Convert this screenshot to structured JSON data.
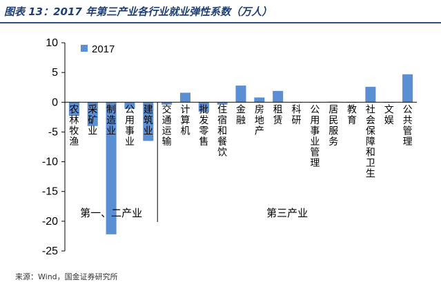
{
  "header": {
    "title": "图表 13：2017 年第三产业各行业就业弹性系数（万人）"
  },
  "footer": {
    "source": "来源：Wind，国金证券研究所"
  },
  "chart_data": {
    "type": "bar",
    "title": "图表 13：2017 年第三产业各行业就业弹性系数（万人）",
    "xlabel": "",
    "ylabel": "",
    "ylim": [
      -25,
      10
    ],
    "yticks": [
      10,
      5,
      0,
      -5,
      -10,
      -15,
      -20,
      -25
    ],
    "grid": false,
    "legend": "top-left",
    "bar_color": "#5b8fd4",
    "categories": [
      "农林牧渔",
      "采矿业",
      "制造业",
      "公用事业",
      "建筑业",
      "交通运输",
      "计算机",
      "批发零售",
      "住宿和餐饮",
      "金融",
      "房地产",
      "租赁",
      "科研",
      "公用事业管理",
      "居民服务",
      "教育",
      "社会保障和卫生",
      "文娱",
      "公共管理"
    ],
    "series": [
      {
        "name": "2017",
        "values": [
          -2.3,
          -4.0,
          -22.2,
          -1.1,
          -6.5,
          -0.4,
          1.6,
          -1.6,
          -0.4,
          2.8,
          0.8,
          1.9,
          -0.05,
          -0.05,
          0.1,
          0.0,
          2.6,
          0.0,
          4.7
        ]
      }
    ],
    "groups": [
      {
        "label": "第一、二产业",
        "start": 0,
        "end": 4
      },
      {
        "label": "第三产业",
        "start": 5,
        "end": 18
      }
    ]
  }
}
